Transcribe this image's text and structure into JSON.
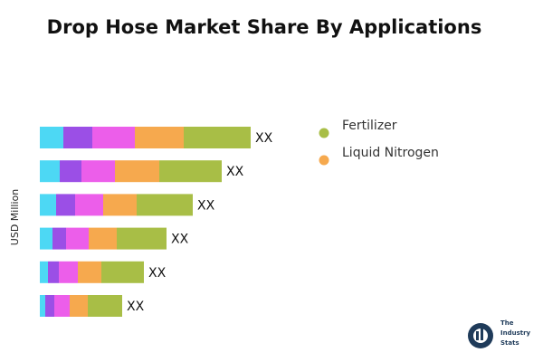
{
  "chart_data": {
    "type": "stacked-barh",
    "title": "Drop Hose Market Share By Applications",
    "ylabel": "USD Million",
    "series": [
      {
        "color": "#4dd8f4",
        "values": [
          26,
          22,
          18,
          14,
          9,
          6
        ]
      },
      {
        "color": "#9b4fe6",
        "values": [
          32,
          24,
          21,
          15,
          12,
          10
        ]
      },
      {
        "color": "#ec5eea",
        "values": [
          47,
          37,
          31,
          25,
          21,
          17
        ]
      },
      {
        "name": "Liquid Nitrogen",
        "color": "#f6a94e",
        "values": [
          54,
          49,
          37,
          31,
          26,
          20
        ]
      },
      {
        "name": "Fertilizer",
        "color": "#a8be46",
        "values": [
          74,
          69,
          62,
          55,
          47,
          38
        ]
      }
    ],
    "value_labels": [
      "XX",
      "XX",
      "XX",
      "XX",
      "XX",
      "XX"
    ],
    "logo": "The Industry Stats"
  }
}
